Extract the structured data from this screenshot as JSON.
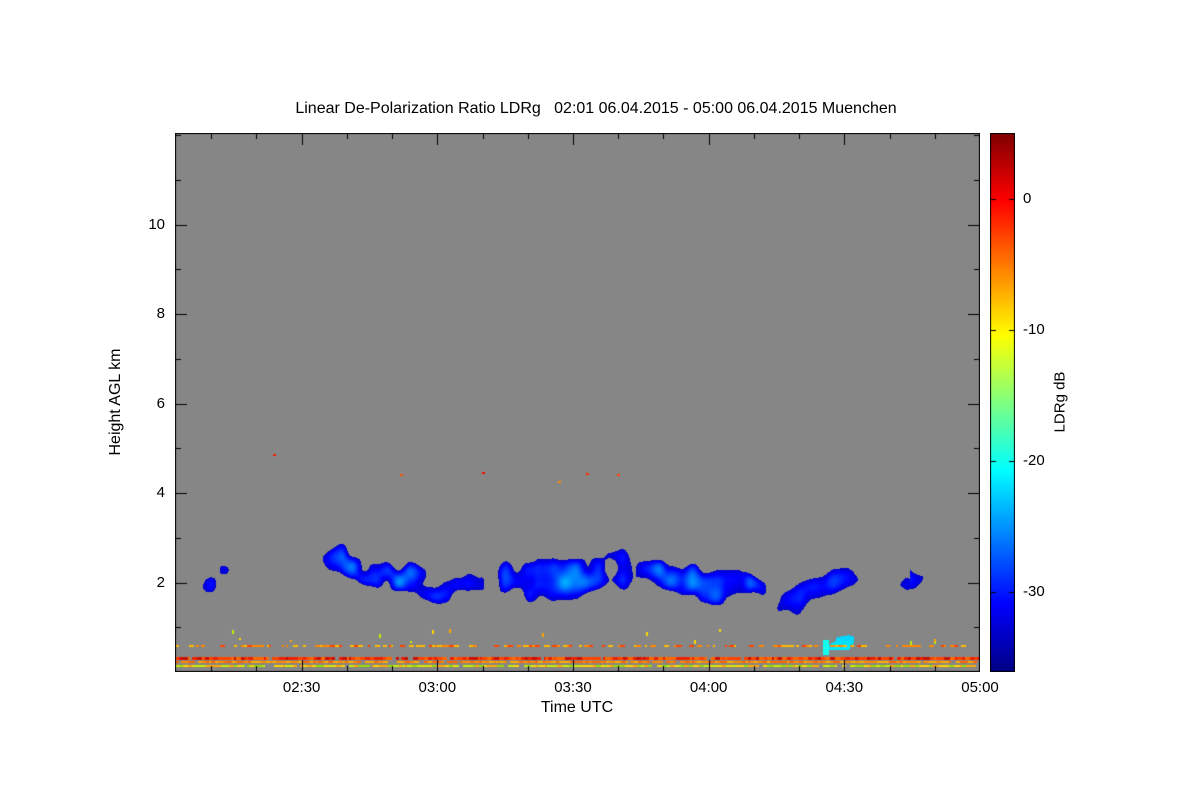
{
  "title": "Linear De-Polarization Ratio LDRg   02:01 06.04.2015 - 05:00 06.04.2015 Muenchen",
  "chart_data": {
    "type": "heatmap",
    "title": "Linear De-Polarization Ratio LDRg   02:01 06.04.2015 - 05:00 06.04.2015 Muenchen",
    "station": "Muenchen",
    "time_start": "02:01 06.04.2015",
    "time_end": "05:00 06.04.2015",
    "xlabel": "Time UTC",
    "ylabel": "Height AGL km",
    "colorbar_label": "LDRg dB",
    "background_color": "#868686",
    "x_axis": {
      "range_minutes": [
        122,
        300
      ],
      "ticks": [
        {
          "minutes": 150,
          "label": "02:30"
        },
        {
          "minutes": 180,
          "label": "03:00"
        },
        {
          "minutes": 210,
          "label": "03:30"
        },
        {
          "minutes": 240,
          "label": "04:00"
        },
        {
          "minutes": 270,
          "label": "04:30"
        },
        {
          "minutes": 300,
          "label": "05:00"
        }
      ],
      "minor_step_minutes": 10
    },
    "y_axis": {
      "range_km": [
        0,
        12.05
      ],
      "ticks": [
        {
          "km": 2,
          "label": "2"
        },
        {
          "km": 4,
          "label": "4"
        },
        {
          "km": 6,
          "label": "6"
        },
        {
          "km": 8,
          "label": "8"
        },
        {
          "km": 10,
          "label": "10"
        }
      ],
      "minor_step_km": 1
    },
    "colorbar": {
      "range_db": [
        -36,
        5
      ],
      "ticks": [
        {
          "db": 0,
          "label": "0"
        },
        {
          "db": -10,
          "label": "-10"
        },
        {
          "db": -20,
          "label": "-20"
        },
        {
          "db": -30,
          "label": "-30"
        }
      ],
      "colormap_stops": [
        {
          "pos": 0.0,
          "color": "#000084"
        },
        {
          "pos": 0.125,
          "color": "#0000ff"
        },
        {
          "pos": 0.375,
          "color": "#00ffff"
        },
        {
          "pos": 0.625,
          "color": "#ffff00"
        },
        {
          "pos": 0.875,
          "color": "#ff0000"
        },
        {
          "pos": 1.0,
          "color": "#800000"
        }
      ]
    },
    "cloud_layer": {
      "description": "broken low-level cloud band, LDRg near -30 dB",
      "time_span_minutes": [
        122,
        300
      ],
      "center_km": 2.05,
      "center_var_km": 0.45,
      "halfwidth_km_min": 0.4,
      "halfwidth_km_var": 0.5,
      "top_km_max": 3.0,
      "typical_db": -30,
      "fall_streak": {
        "time_minutes": [
          251,
          287
        ],
        "min_base_km": 0.5,
        "tip_time_min": 266,
        "tip_km": [
          0.38,
          0.72
        ],
        "tip_db": -20
      }
    },
    "ground_stripes": [
      {
        "km": 0.6,
        "style": "dashed",
        "thickness": 2,
        "db": -5,
        "colors": [
          "#ff4400",
          "#ff8800",
          "#ffbb00"
        ]
      },
      {
        "km": 0.33,
        "style": "solid",
        "thickness": 3,
        "db": -2,
        "colors": [
          "#ee2200",
          "#ff4400",
          "#cc1100",
          "#ff6600"
        ]
      },
      {
        "km": 0.24,
        "style": "solid",
        "thickness": 2,
        "db": -6,
        "colors": [
          "#ff8800",
          "#ffaa00",
          "#ff6600"
        ]
      },
      {
        "km": 0.15,
        "style": "solid",
        "thickness": 2,
        "db": -9,
        "colors": [
          "#ffd700",
          "#ccee00",
          "#99dd00",
          "#ffaa00"
        ]
      }
    ],
    "specks": [
      {
        "time": "02:24",
        "km": 4.85,
        "db": 0,
        "color": "#ee2200"
      },
      {
        "time": "02:52",
        "km": 4.4,
        "db": -3,
        "color": "#ff5500"
      },
      {
        "time": "03:10",
        "km": 4.45,
        "db": 0,
        "color": "#ee1100"
      },
      {
        "time": "03:27",
        "km": 4.25,
        "db": -5,
        "color": "#ff8800"
      },
      {
        "time": "03:33",
        "km": 4.42,
        "db": -1,
        "color": "#ff3300"
      },
      {
        "time": "03:40",
        "km": 4.4,
        "db": -2,
        "color": "#ff4400"
      }
    ],
    "ground_specks": {
      "count": 14,
      "km_range": [
        0.68,
        1.1
      ],
      "colors": [
        "#ffd700",
        "#ffa500",
        "#bbee00"
      ]
    },
    "seed": 20150406
  }
}
